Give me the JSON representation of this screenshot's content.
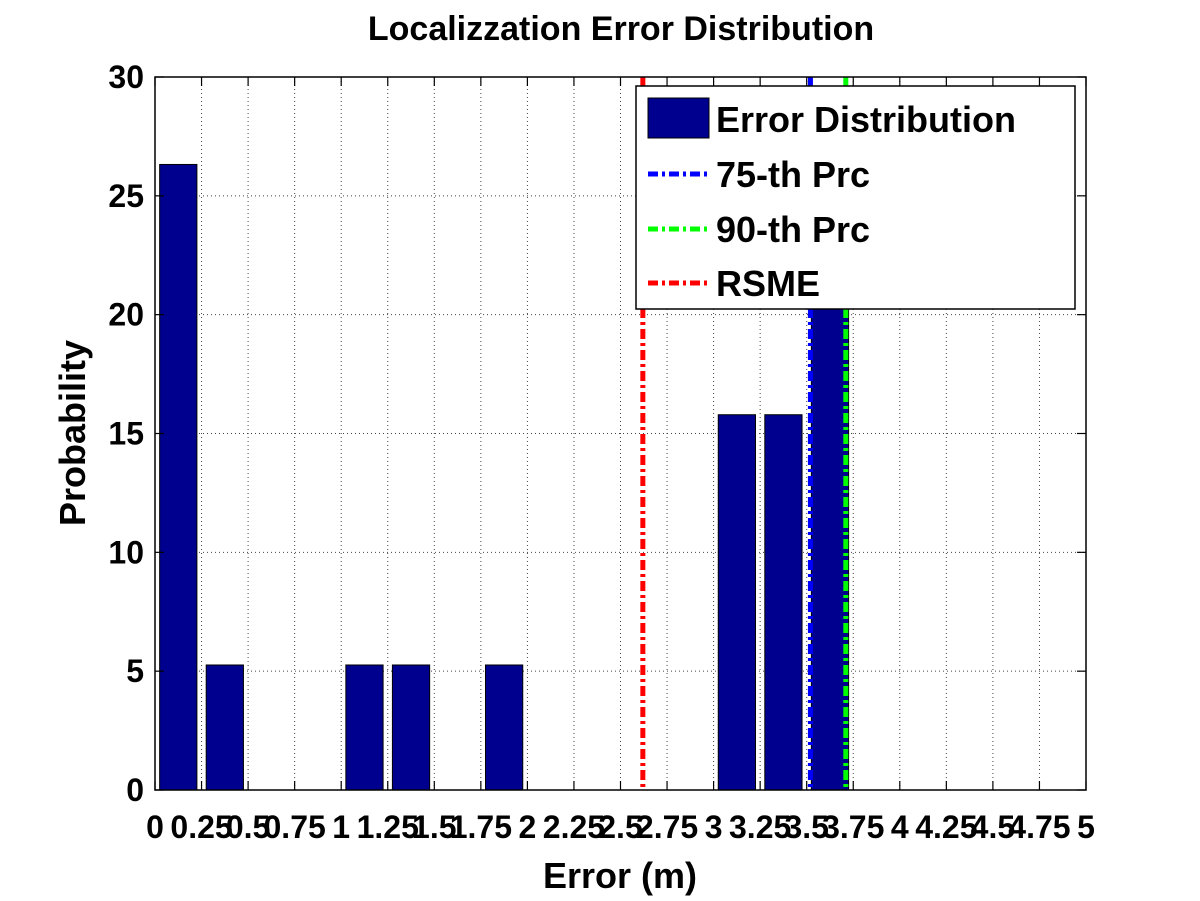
{
  "chart_data": {
    "type": "bar",
    "title": "Localizzation Error Distribution",
    "xlabel": "Error (m)",
    "ylabel": "Probability",
    "xlim": [
      0,
      5
    ],
    "ylim": [
      0,
      30
    ],
    "x_ticks": [
      0,
      0.25,
      0.5,
      0.75,
      1,
      1.25,
      1.5,
      1.75,
      2,
      2.25,
      2.5,
      2.75,
      3,
      3.25,
      3.5,
      3.75,
      4,
      4.25,
      4.5,
      4.75,
      5
    ],
    "x_tick_labels": [
      "0",
      "0.25",
      "0.5",
      "0.75",
      "1",
      "1.25",
      "1.5",
      "1.75",
      "2",
      "2.25",
      "2.5",
      "2.75",
      "3",
      "3.25",
      "3.5",
      "3.75",
      "4",
      "4.25",
      "4.5",
      "4.75",
      "5"
    ],
    "y_ticks": [
      0,
      5,
      10,
      15,
      20,
      25,
      30
    ],
    "y_tick_labels": [
      "0",
      "5",
      "10",
      "15",
      "20",
      "25",
      "30"
    ],
    "grid": true,
    "legend_position": "top-right",
    "bars": [
      {
        "x": 0.125,
        "value": 26.32
      },
      {
        "x": 0.375,
        "value": 5.26
      },
      {
        "x": 1.125,
        "value": 5.26
      },
      {
        "x": 1.375,
        "value": 5.26
      },
      {
        "x": 1.875,
        "value": 5.26
      },
      {
        "x": 3.125,
        "value": 15.79
      },
      {
        "x": 3.375,
        "value": 15.79
      },
      {
        "x": 3.625,
        "value": 26.32
      }
    ],
    "bar_series_name": "Error Distribution",
    "bar_color": "#00008f",
    "lines": [
      {
        "name": "75-th Prc",
        "x": 3.52,
        "color": "#0000ff"
      },
      {
        "name": "90-th Prc",
        "x": 3.71,
        "color": "#00ff00"
      },
      {
        "name": "RSME",
        "x": 2.62,
        "color": "#ff0000"
      }
    ]
  }
}
